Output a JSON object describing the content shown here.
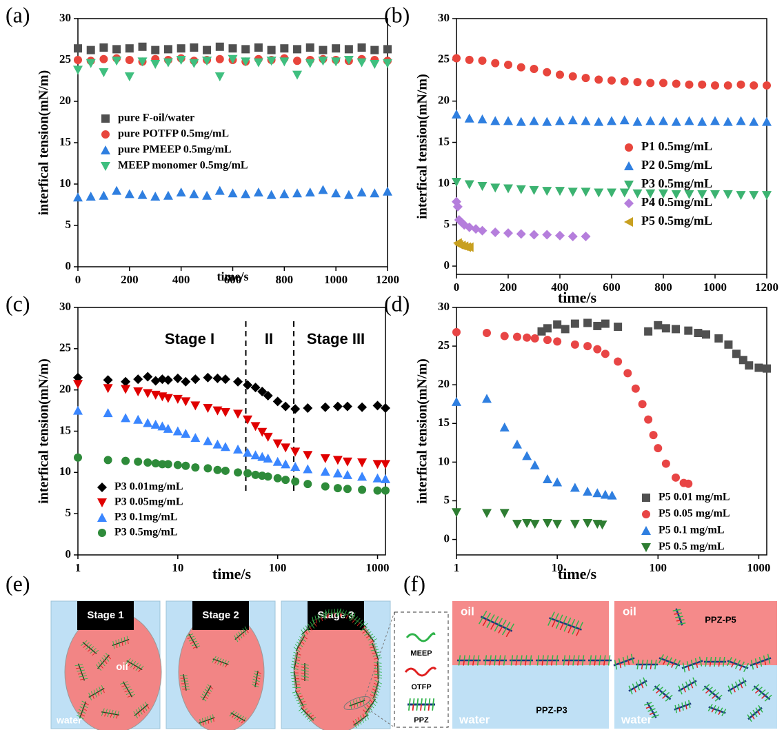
{
  "chart_data": [
    {
      "type": "scatter",
      "panel_label": "(a)",
      "x_label": "time/s",
      "y_label": "interfical tension(mN/m)",
      "xlim": [
        0,
        1200
      ],
      "xticks": [
        0,
        200,
        400,
        600,
        800,
        1000,
        1200
      ],
      "ylim": [
        0,
        30
      ],
      "yticks": [
        0,
        5,
        10,
        15,
        20,
        25,
        30
      ],
      "legend": "center left",
      "x": [
        0,
        50,
        100,
        150,
        200,
        250,
        300,
        350,
        400,
        450,
        500,
        550,
        600,
        650,
        700,
        750,
        800,
        850,
        900,
        950,
        1000,
        1050,
        1100,
        1150,
        1200
      ],
      "series": [
        {
          "name": "pure F-oil/water",
          "color": "#505050",
          "marker": "square",
          "values": [
            26.4,
            26.2,
            26.5,
            26.3,
            26.4,
            26.6,
            26.2,
            26.3,
            26.4,
            26.5,
            26.2,
            26.6,
            26.4,
            26.3,
            26.5,
            26.2,
            26.4,
            26.3,
            26.5,
            26.2,
            26.4,
            26.3,
            26.5,
            26.2,
            26.3
          ]
        },
        {
          "name": "pure POTFP   0.5mg/mL",
          "color": "#e8453c",
          "marker": "circle",
          "values": [
            25.0,
            24.9,
            25.1,
            25.2,
            25.0,
            24.8,
            25.1,
            25.0,
            25.2,
            24.9,
            25.0,
            25.1,
            25.0,
            24.8,
            25.1,
            25.0,
            25.2,
            24.9,
            25.0,
            25.1,
            25.0,
            24.9,
            25.1,
            25.0,
            24.9
          ]
        },
        {
          "name": "pure PMEEP   0.5mg/mL",
          "color": "#2f7fe0",
          "marker": "triangle",
          "values": [
            8.4,
            8.5,
            8.6,
            9.2,
            8.8,
            8.7,
            8.5,
            8.6,
            9.0,
            8.8,
            8.6,
            9.2,
            8.9,
            8.8,
            9.0,
            8.7,
            8.8,
            8.9,
            9.0,
            9.3,
            8.9,
            8.7,
            9.0,
            8.9,
            9.1
          ]
        },
        {
          "name": "MEEP monomer 0.5mg/mL",
          "color": "#3fbf7f",
          "marker": "triangle-down",
          "values": [
            23.8,
            24.6,
            23.5,
            24.9,
            23.0,
            24.8,
            24.5,
            24.7,
            25.0,
            24.6,
            24.9,
            23.0,
            25.1,
            24.8,
            24.7,
            24.9,
            24.8,
            23.2,
            24.6,
            24.9,
            24.8,
            25.0,
            24.7,
            24.5,
            24.6
          ]
        }
      ]
    },
    {
      "type": "scatter",
      "panel_label": "(b)",
      "x_label": "time/s",
      "y_label": "interfical tension(mN/m)",
      "xlim": [
        0,
        1200
      ],
      "xticks": [
        0,
        200,
        400,
        600,
        800,
        1000,
        1200
      ],
      "ylim": [
        -1,
        30
      ],
      "yticks": [
        0,
        5,
        10,
        15,
        20,
        25,
        30
      ],
      "legend": "center right",
      "x": [
        0,
        50,
        100,
        150,
        200,
        250,
        300,
        350,
        400,
        450,
        500,
        550,
        600,
        650,
        700,
        750,
        800,
        850,
        900,
        950,
        1000,
        1050,
        1100,
        1150,
        1200
      ],
      "series": [
        {
          "name": "P1 0.5mg/mL",
          "color": "#e8453c",
          "marker": "circle",
          "values": [
            25.2,
            25.0,
            24.9,
            24.6,
            24.4,
            24.1,
            23.9,
            23.5,
            23.2,
            23.0,
            22.8,
            22.6,
            22.5,
            22.4,
            22.3,
            22.2,
            22.2,
            22.1,
            22.0,
            22.0,
            21.9,
            21.9,
            22.0,
            21.9,
            21.9
          ]
        },
        {
          "name": "P2 0.5mg/mL",
          "color": "#2f7fe0",
          "marker": "triangle",
          "values": [
            18.4,
            17.9,
            17.8,
            17.6,
            17.6,
            17.5,
            17.6,
            17.5,
            17.6,
            17.7,
            17.6,
            17.5,
            17.6,
            17.7,
            17.5,
            17.6,
            17.6,
            17.5,
            17.6,
            17.5,
            17.6,
            17.5,
            17.6,
            17.5,
            17.5
          ]
        },
        {
          "name": "P3 0.5mg/mL",
          "color": "#3cb371",
          "marker": "triangle-down",
          "values": [
            10.2,
            9.9,
            9.7,
            9.5,
            9.4,
            9.3,
            9.2,
            9.1,
            9.1,
            9.0,
            9.0,
            8.9,
            8.9,
            8.9,
            8.8,
            8.8,
            8.8,
            8.7,
            8.7,
            8.7,
            8.7,
            8.7,
            8.6,
            8.6,
            8.6
          ]
        },
        {
          "name": "P4 0.5mg/mL",
          "color": "#b57edc",
          "marker": "diamond",
          "x": [
            0,
            5,
            10,
            20,
            30,
            50,
            75,
            100,
            150,
            200,
            250,
            300,
            350,
            400,
            450,
            500
          ],
          "values": [
            7.8,
            7.2,
            5.6,
            5.3,
            5.0,
            4.7,
            4.5,
            4.3,
            4.1,
            4.0,
            3.9,
            3.8,
            3.8,
            3.7,
            3.6,
            3.6
          ]
        },
        {
          "name": "P5 0.5mg/mL",
          "color": "#c8a020",
          "marker": "triangle-left",
          "x": [
            5,
            10,
            20,
            30,
            40,
            50
          ],
          "values": [
            2.8,
            2.6,
            2.5,
            2.4,
            2.3,
            2.3
          ]
        }
      ]
    },
    {
      "type": "scatter",
      "panel_label": "(c)",
      "x_label": "time/s",
      "y_label": "interfical tension(mN/m)",
      "log_x": true,
      "xlim": [
        1,
        1200
      ],
      "xticks": [
        1,
        10,
        100,
        1000
      ],
      "ylim": [
        0,
        30
      ],
      "yticks": [
        0,
        5,
        10,
        15,
        20,
        25,
        30
      ],
      "legend": "lower left",
      "vlines": [
        48,
        145
      ],
      "annotations": [
        "Stage I",
        "II",
        "Stage III"
      ],
      "x": [
        1,
        2,
        3,
        4,
        5,
        6,
        7,
        8,
        10,
        12,
        15,
        20,
        25,
        30,
        40,
        50,
        60,
        70,
        80,
        100,
        120,
        150,
        200,
        300,
        400,
        500,
        700,
        1000,
        1200
      ],
      "series": [
        {
          "name": "P3 0.01mg/mL",
          "color": "#000000",
          "marker": "diamond",
          "values": [
            21.5,
            21.2,
            21.0,
            21.3,
            21.6,
            21.1,
            21.3,
            21.2,
            21.4,
            21.0,
            21.3,
            21.5,
            21.4,
            21.3,
            21.0,
            20.6,
            20.3,
            19.8,
            19.3,
            18.6,
            18.0,
            17.7,
            17.8,
            17.9,
            18.0,
            18.0,
            17.9,
            18.1,
            17.8
          ]
        },
        {
          "name": "P3 0.05mg/mL",
          "color": "#e00000",
          "marker": "triangle-down",
          "values": [
            20.7,
            20.2,
            20.1,
            19.8,
            19.6,
            19.4,
            19.2,
            19.0,
            18.9,
            18.6,
            18.1,
            17.8,
            17.5,
            17.3,
            17.1,
            16.4,
            15.6,
            14.9,
            14.3,
            13.5,
            13.0,
            12.5,
            12.1,
            11.7,
            11.5,
            11.3,
            11.2,
            11.0,
            11.0
          ]
        },
        {
          "name": "P3 0.1mg/mL",
          "color": "#3a86ff",
          "marker": "triangle",
          "values": [
            17.5,
            17.2,
            16.6,
            16.4,
            16.0,
            15.8,
            15.6,
            15.3,
            15.0,
            14.7,
            14.2,
            13.8,
            13.4,
            13.1,
            12.8,
            12.4,
            12.1,
            11.9,
            11.7,
            11.3,
            11.0,
            10.7,
            10.4,
            10.1,
            9.9,
            9.7,
            9.5,
            9.3,
            9.2
          ]
        },
        {
          "name": "P3 0.5mg/mL",
          "color": "#2e8b3a",
          "marker": "circle",
          "values": [
            11.8,
            11.5,
            11.4,
            11.3,
            11.2,
            11.1,
            11.0,
            11.0,
            10.9,
            10.8,
            10.6,
            10.5,
            10.3,
            10.2,
            10.0,
            9.9,
            9.7,
            9.6,
            9.5,
            9.3,
            9.1,
            8.9,
            8.6,
            8.3,
            8.1,
            8.0,
            7.9,
            7.8,
            7.8
          ]
        }
      ]
    },
    {
      "type": "scatter",
      "panel_label": "(d)",
      "x_label": "time/s",
      "y_label": "interfical tension(mN/m)",
      "log_x": true,
      "xlim": [
        1,
        1200
      ],
      "xticks": [
        1,
        10,
        100,
        1000
      ],
      "ylim": [
        -2,
        30
      ],
      "yticks": [
        0,
        5,
        10,
        15,
        20,
        25,
        30
      ],
      "legend": "lower right",
      "series": [
        {
          "name": "P5 0.01 mg/mL",
          "color": "#505050",
          "marker": "square",
          "x": [
            7,
            8,
            10,
            12,
            15,
            20,
            25,
            30,
            40,
            80,
            100,
            120,
            150,
            200,
            250,
            300,
            400,
            500,
            600,
            700,
            800,
            1000,
            1200
          ],
          "values": [
            26.9,
            27.3,
            27.8,
            27.2,
            27.9,
            28.0,
            27.6,
            27.9,
            27.5,
            26.9,
            27.7,
            27.3,
            27.2,
            27.0,
            26.7,
            26.5,
            26.0,
            25.2,
            24.0,
            23.2,
            22.5,
            22.2,
            22.1
          ]
        },
        {
          "name": "P5 0.05 mg/mL",
          "color": "#e84545",
          "marker": "circle",
          "x": [
            1,
            2,
            3,
            4,
            5,
            6,
            8,
            10,
            15,
            20,
            25,
            30,
            40,
            50,
            60,
            70,
            80,
            90,
            100,
            120,
            150,
            180,
            200
          ],
          "values": [
            26.8,
            26.7,
            26.3,
            26.2,
            26.1,
            26.0,
            25.8,
            25.6,
            25.2,
            25.0,
            24.6,
            24.0,
            23.0,
            21.5,
            19.5,
            17.5,
            15.5,
            13.5,
            11.8,
            9.8,
            8.0,
            7.3,
            7.2
          ]
        },
        {
          "name": "P5 0.1 mg/mL",
          "color": "#2f7fe0",
          "marker": "triangle",
          "x": [
            1,
            2,
            3,
            4,
            5,
            6,
            8,
            10,
            15,
            20,
            25,
            30,
            35
          ],
          "values": [
            17.8,
            18.2,
            14.5,
            12.3,
            10.8,
            9.6,
            7.8,
            7.4,
            6.7,
            6.2,
            6.0,
            5.8,
            5.7
          ]
        },
        {
          "name": "P5 0.5 mg/mL",
          "color": "#2e7d32",
          "marker": "triangle-down",
          "x": [
            1,
            2,
            3,
            4,
            5,
            6,
            8,
            10,
            15,
            20,
            25,
            28
          ],
          "values": [
            3.5,
            3.4,
            3.4,
            2.0,
            2.1,
            2.0,
            2.1,
            2.0,
            2.0,
            2.1,
            2.0,
            1.9
          ]
        }
      ]
    }
  ],
  "diagram_e": {
    "label": "(e)",
    "stages": [
      "Stage 1",
      "Stage 2",
      "Stage 3"
    ],
    "oil": "oil",
    "water": "water",
    "legend": [
      "MEEP",
      "OTFP",
      "PPZ"
    ]
  },
  "diagram_f": {
    "label": "(f)",
    "panels": [
      {
        "oil": "oil",
        "water": "water",
        "name": "PPZ-P3"
      },
      {
        "oil": "oil",
        "water": "water",
        "name": "PPZ-P5"
      }
    ]
  }
}
